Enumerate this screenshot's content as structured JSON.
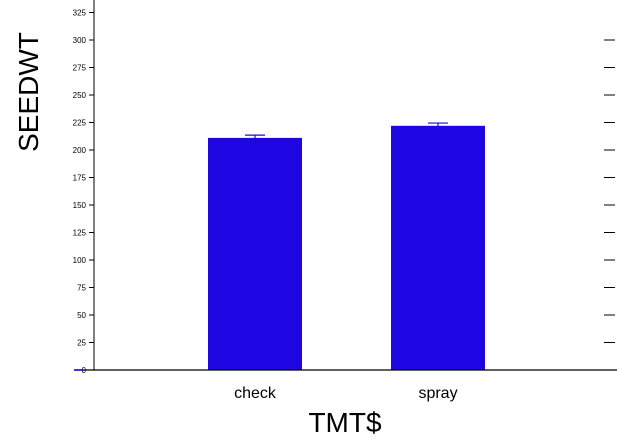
{
  "chart_data": {
    "type": "bar",
    "title": "",
    "xlabel": "TMT$",
    "ylabel": "SEEDWT",
    "categories": [
      "check",
      "spray"
    ],
    "series": [
      {
        "values": [
          211,
          222
        ],
        "error": [
          2.5,
          2.5
        ]
      }
    ],
    "yticks": [
      0,
      25,
      50,
      75,
      100,
      125,
      150,
      175,
      200,
      225,
      250,
      275,
      300,
      325
    ],
    "ytick_labels": [
      "0",
      "25",
      "50",
      "75",
      "100",
      "125",
      "150",
      "175",
      "200",
      "225",
      "250",
      "275",
      "300",
      "325"
    ],
    "ylim": [
      0,
      330
    ],
    "grid": false,
    "colors": {
      "bar": "#1e06e3",
      "error_bar": "#1e06e3",
      "axis": "#000000"
    }
  }
}
